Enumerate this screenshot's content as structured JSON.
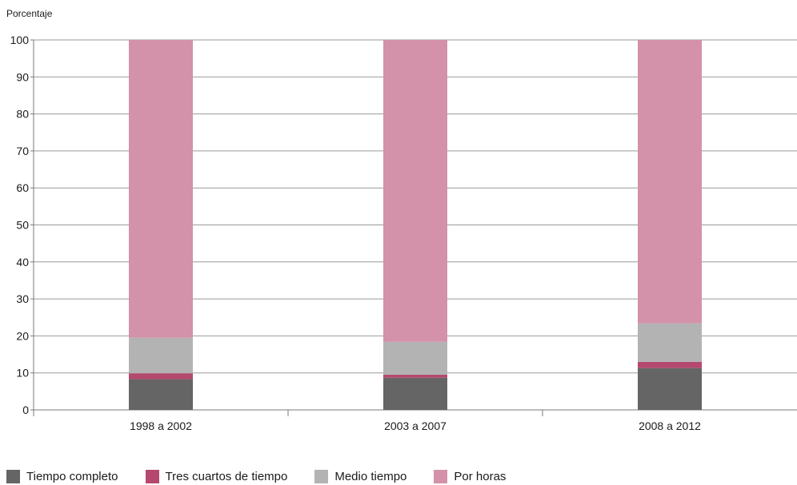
{
  "chart_data": {
    "type": "bar",
    "stacked": true,
    "ylabel": "Porcentaje",
    "ylim": [
      0,
      100
    ],
    "yticks": [
      0,
      10,
      20,
      30,
      40,
      50,
      60,
      70,
      80,
      90,
      100
    ],
    "grid": true,
    "legend_position": "bottom",
    "categories": [
      "1998 a 2002",
      "2003 a 2007",
      "2008 a 2012"
    ],
    "series": [
      {
        "name": "Tiempo completo",
        "color": "#656565",
        "values": [
          8.3,
          8.7,
          11.3
        ]
      },
      {
        "name": "Tres cuartos de tiempo",
        "color": "#b4486f",
        "values": [
          1.6,
          0.8,
          1.7
        ]
      },
      {
        "name": "Medio tiempo",
        "color": "#b3b3b3",
        "values": [
          9.6,
          8.9,
          10.4
        ]
      },
      {
        "name": "Por horas",
        "color": "#d391aa",
        "values": [
          80.5,
          81.6,
          76.6
        ]
      }
    ]
  }
}
